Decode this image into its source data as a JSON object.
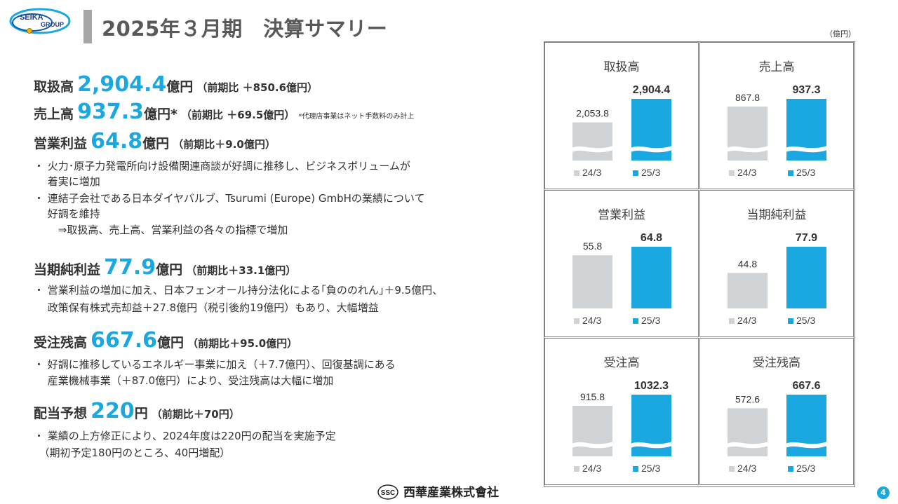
{
  "header": {
    "logo_text_1": "SEIKA",
    "logo_text_2": "GROUP",
    "title": "2025年３月期　決算サマリー",
    "unit": "（億円）"
  },
  "summary": {
    "toriatsukai": {
      "label": "取扱高",
      "value": "2,904.4",
      "unit": "億円",
      "compare": "（前期比 ＋850.6億円）"
    },
    "uriage": {
      "label": "売上高",
      "value": "937.3",
      "unit": "億円*",
      "compare": "（前期比 ＋69.5億円）",
      "note": "*代理店事業はネット手数料のみ計上"
    },
    "eigyo": {
      "label": "営業利益",
      "value": "64.8",
      "unit": "億円",
      "compare": "（前期比＋9.0億円）"
    },
    "eigyo_bullets": [
      "・ 火力･原子力発電所向け設備関連商談が好調に推移し、ビジネスボリュームが",
      "　 着実に増加",
      "・ 連結子会社である日本ダイヤバルブ、Tsurumi (Europe) GmbHの業績について",
      "　 好調を維持",
      "　 　⇒取扱高、売上高、営業利益の各々の指標で増加"
    ],
    "junrieki": {
      "label": "当期純利益",
      "value": "77.9",
      "unit": "億円",
      "compare": "（前期比＋33.1億円）"
    },
    "junrieki_bullets": [
      "・ 営業利益の増加に加え、日本フェンオール持分法化による｢負ののれん｣＋9.5億円、",
      "　 政策保有株式売却益＋27.8億円（税引後約19億円）もあり、大幅増益"
    ],
    "jutyuzan": {
      "label": "受注残高",
      "value": "667.6",
      "unit": "億円",
      "compare": "（前期比＋95.0億円）"
    },
    "jutyuzan_bullets": [
      "・ 好調に推移しているエネルギー事業に加え（＋7.7億円）、回復基調にある",
      "　 産業機械事業（＋87.0億円）により、受注残高は大幅に増加"
    ],
    "haito": {
      "label": "配当予想",
      "value": "220",
      "unit": "円",
      "compare": "（前期比＋70円）"
    },
    "haito_bullets": [
      "・ 業績の上方修正により、2024年度は220円の配当を実施予定",
      "　（期初予定180円のところ、40円増配）"
    ]
  },
  "chart_data": [
    {
      "type": "bar",
      "title": "取扱高",
      "categories": [
        "24/3",
        "25/3"
      ],
      "values": [
        2053.8,
        2904.4
      ],
      "labels": [
        "2,053.8",
        "2,904.4"
      ],
      "axis_break": true,
      "colors": [
        "#d0d3d6",
        "#1ba8e0"
      ]
    },
    {
      "type": "bar",
      "title": "売上高",
      "categories": [
        "24/3",
        "25/3"
      ],
      "values": [
        867.8,
        937.3
      ],
      "labels": [
        "867.8",
        "937.3"
      ],
      "axis_break": true,
      "colors": [
        "#d0d3d6",
        "#1ba8e0"
      ]
    },
    {
      "type": "bar",
      "title": "営業利益",
      "categories": [
        "24/3",
        "25/3"
      ],
      "values": [
        55.8,
        64.8
      ],
      "labels": [
        "55.8",
        "64.8"
      ],
      "axis_break": false,
      "colors": [
        "#d0d3d6",
        "#1ba8e0"
      ]
    },
    {
      "type": "bar",
      "title": "当期純利益",
      "categories": [
        "24/3",
        "25/3"
      ],
      "values": [
        44.8,
        77.9
      ],
      "labels": [
        "44.8",
        "77.9"
      ],
      "axis_break": false,
      "colors": [
        "#d0d3d6",
        "#1ba8e0"
      ]
    },
    {
      "type": "bar",
      "title": "受注高",
      "categories": [
        "24/3",
        "25/3"
      ],
      "values": [
        915.8,
        1032.3
      ],
      "labels": [
        "915.8",
        "1032.3"
      ],
      "axis_break": true,
      "colors": [
        "#d0d3d6",
        "#1ba8e0"
      ]
    },
    {
      "type": "bar",
      "title": "受注残高",
      "categories": [
        "24/3",
        "25/3"
      ],
      "values": [
        572.6,
        667.6
      ],
      "labels": [
        "572.6",
        "667.6"
      ],
      "axis_break": true,
      "colors": [
        "#d0d3d6",
        "#1ba8e0"
      ]
    }
  ],
  "footer": {
    "logo_mark": "SSC",
    "company": "西華産業株式會社",
    "page": "4"
  }
}
